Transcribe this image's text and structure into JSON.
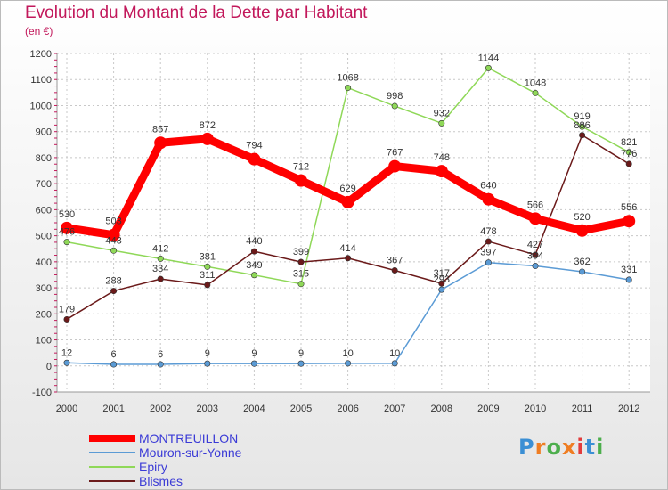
{
  "chart_data": {
    "type": "line",
    "title": "Evolution du Montant de la Dette par Habitant",
    "subtitle": "(en €)",
    "categories": [
      "2000",
      "2001",
      "2002",
      "2003",
      "2004",
      "2005",
      "2006",
      "2007",
      "2008",
      "2009",
      "2010",
      "2011",
      "2012"
    ],
    "ylim": [
      -100,
      1200
    ],
    "yticks": [
      -100,
      0,
      100,
      200,
      300,
      400,
      500,
      600,
      700,
      800,
      900,
      1000,
      1100,
      1200
    ],
    "grid": true,
    "legend_position": "bottom-left",
    "series": [
      {
        "name": "MONTREUILLON",
        "color": "#ff0000",
        "thick": true,
        "values": [
          530,
          503,
          857,
          872,
          794,
          712,
          629,
          767,
          748,
          640,
          566,
          520,
          556
        ],
        "labels": [
          "530",
          "503",
          "857",
          "872",
          "794",
          "712",
          "629",
          "767",
          "748",
          "640",
          "566",
          "520",
          "556"
        ]
      },
      {
        "name": "Mouron-sur-Yonne",
        "color": "#5b9bd5",
        "thick": false,
        "values": [
          12,
          6,
          6,
          9,
          9,
          9,
          10,
          10,
          293,
          397,
          384,
          362,
          331
        ],
        "labels": [
          "12",
          "6",
          "6",
          "9",
          "9",
          "9",
          "10",
          "10",
          "293",
          "397",
          "384",
          "362",
          "331"
        ]
      },
      {
        "name": "Epiry",
        "color": "#8fd858",
        "thick": false,
        "values": [
          476,
          443,
          412,
          381,
          349,
          315,
          1068,
          998,
          932,
          1144,
          1048,
          919,
          821
        ],
        "labels": [
          "476",
          "443",
          "412",
          "381",
          "349",
          "315",
          "1068",
          "998",
          "932",
          "1144",
          "1048",
          "919",
          "821"
        ]
      },
      {
        "name": "Blismes",
        "color": "#6b1a1a",
        "thick": false,
        "values": [
          179,
          288,
          334,
          311,
          440,
          399,
          414,
          367,
          317,
          478,
          427,
          886,
          776
        ],
        "labels": [
          "179",
          "288",
          "334",
          "311",
          "440",
          "399",
          "414",
          "367",
          "317",
          "478",
          "427",
          "886",
          "776"
        ]
      }
    ]
  },
  "logo": {
    "letters": [
      "P",
      "r",
      "o",
      "x",
      "i",
      "t",
      "i"
    ],
    "colors": [
      "#3b8fd4",
      "#ef7d22",
      "#4cae4c",
      "#ef7d22",
      "#e23b3b",
      "#3b8fd4",
      "#4cae4c"
    ]
  }
}
